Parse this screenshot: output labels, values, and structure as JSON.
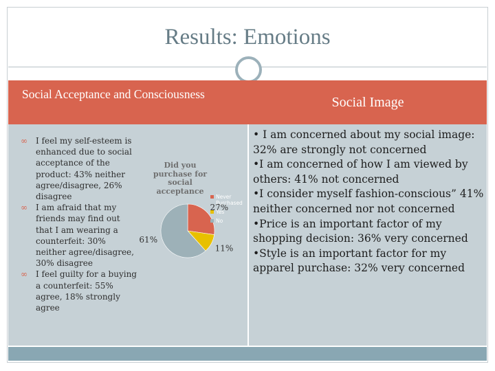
{
  "slide": {
    "title": "Results: Emotions",
    "left_heading": "Social Acceptance and Consciousness",
    "right_heading": "Social Image",
    "left_bullets": [
      "I feel my self-esteem is enhanced due to social acceptance of the product: 43% neither agree/disagree, 26% disagree",
      "I am afraid that my friends may find out that I am wearing a counterfeit: 30% neither agree/disagree, 30% disagree",
      "I feel guilty for a buying a counterfeit: 55% agree, 18% strongly agree"
    ],
    "right_paragraphs": [
      "• I am concerned about my social image: 32% are strongly not concerned",
      "•I am concerned of how I am viewed by others: 41% not concerned",
      "•I consider myself fashion-conscious” 41% neither concerned nor not concerned",
      "•Price is an important factor of my shopping decision: 36% very concerned",
      "•Style is an important factor for my apparel purchase: 32% very concerned"
    ],
    "bullet_icon": "infinity-bullet-icon"
  },
  "colors": {
    "title": "#667c86",
    "banner": "#d8644f",
    "panel": "#c6d1d6",
    "footer": "#89a7b3",
    "ring": "#9cb1ba"
  },
  "chart_data": {
    "type": "pie",
    "title": "Did you purchase for social acceptance",
    "slices": [
      {
        "name": "Never Purchased",
        "value": 27,
        "label": "27%",
        "color": "#d8644f"
      },
      {
        "name": "Yes",
        "value": 11,
        "label": "11%",
        "color": "#e8c000"
      },
      {
        "name": "No",
        "value": 61,
        "label": "61%",
        "color": "#9db1b8"
      }
    ],
    "legend_position": "right"
  }
}
